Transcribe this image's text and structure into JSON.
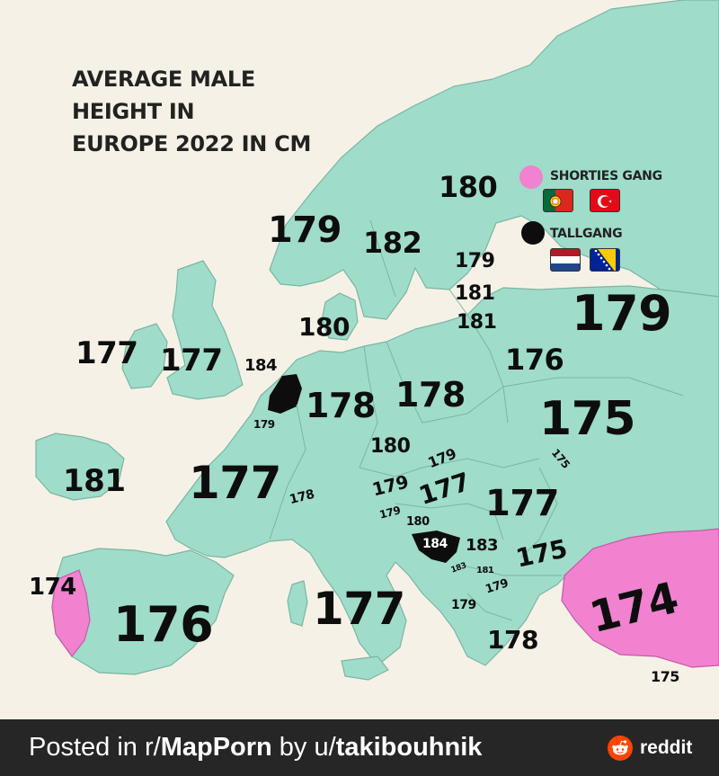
{
  "title": {
    "line1": "AVERAGE MALE",
    "line2": "HEIGHT IN",
    "line3": "EUROPE 2022 IN CM"
  },
  "colors": {
    "sea": "#f6f1e6",
    "land": "#9fdcc9",
    "border": "#7ab6a4",
    "shorties": "#f082cf",
    "tallgang": "#0d0d0d"
  },
  "legend": {
    "shorties_label": "SHORTIES GANG",
    "shorties_flags": [
      "portugal-flag",
      "turkey-flag"
    ],
    "tallgang_label": "TALLGANG",
    "tallgang_flags": [
      "netherlands-flag",
      "bosnia-flag"
    ]
  },
  "heights": {
    "norway": "179",
    "sweden": "182",
    "finland": "180",
    "russia": "179",
    "estonia": "179",
    "latvia": "181",
    "lithuania": "181",
    "denmark": "180",
    "ireland": "177",
    "uk": "177",
    "netherlands": "184",
    "belgium": "179",
    "germany": "178",
    "poland": "178",
    "belarus": "176",
    "ukraine": "175",
    "czechia": "180",
    "slovakia": "179",
    "moldova": "175",
    "austria": "179",
    "hungary": "177",
    "romania": "177",
    "switzerland": "178",
    "france": "177",
    "slovenia": "179",
    "croatia": "180",
    "bosnia": "184",
    "serbia": "183",
    "montenegro": "183",
    "kosovo": "181",
    "north_macedonia": "179",
    "albania": "179",
    "bulgaria": "175",
    "greece": "178",
    "cyprus": "175",
    "turkey": "174",
    "italy": "177",
    "spain": "176",
    "portugal": "174",
    "iceland": "181"
  },
  "footer": {
    "prefix": "Posted in r/",
    "subreddit": "MapPorn",
    "middle": " by u/",
    "user": "takibouhnik",
    "brand": "reddit"
  }
}
